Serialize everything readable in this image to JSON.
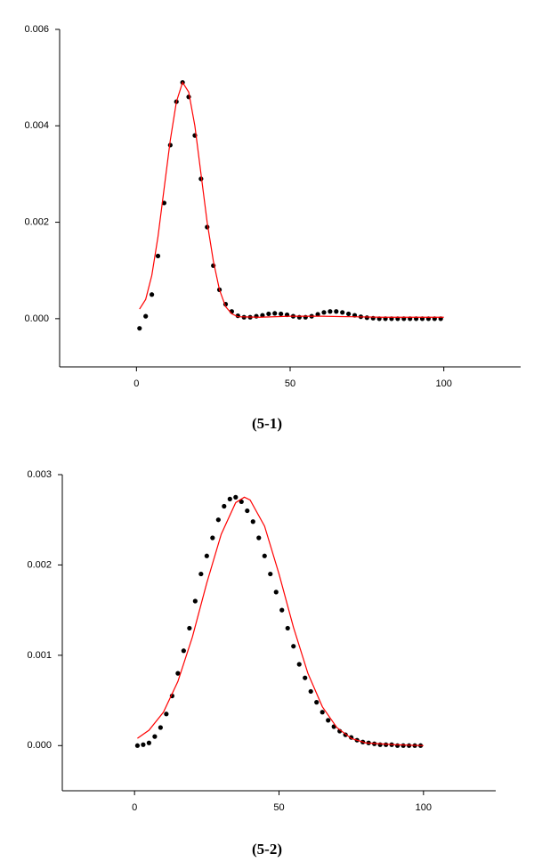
{
  "chart_data": [
    {
      "type": "scatter",
      "caption": "(5-1)",
      "xlim": [
        -25,
        125
      ],
      "xticks": [
        0,
        50,
        100
      ],
      "ylim": [
        -0.001,
        0.006
      ],
      "yticks": [
        {
          "value": 0,
          "label": "0.000"
        },
        0.002,
        0.004,
        0.006
      ],
      "series": [
        {
          "style": "markers",
          "color": "#000000",
          "x": [
            1,
            3,
            5,
            7,
            9,
            11,
            13,
            15,
            17,
            19,
            21,
            23,
            25,
            27,
            29,
            31,
            33,
            35,
            37,
            39,
            41,
            43,
            45,
            47,
            49,
            51,
            53,
            55,
            57,
            59,
            61,
            63,
            65,
            67,
            69,
            71,
            73,
            75,
            77,
            79,
            81,
            83,
            85,
            87,
            89,
            91,
            93,
            95,
            97,
            99
          ],
          "values": [
            -0.0002,
            5e-05,
            0.0005,
            0.0013,
            0.0024,
            0.0036,
            0.0045,
            0.0049,
            0.0046,
            0.0038,
            0.0029,
            0.0019,
            0.0011,
            0.0006,
            0.0003,
            0.00015,
            6e-05,
            3e-05,
            3e-05,
            5e-05,
            7e-05,
            0.0001,
            0.00011,
            0.0001,
            8e-05,
            5e-05,
            3e-05,
            3e-05,
            5e-05,
            9e-05,
            0.00013,
            0.00015,
            0.00015,
            0.00013,
            0.0001,
            7e-05,
            4e-05,
            2e-05,
            1e-05,
            0,
            0,
            0,
            0,
            0,
            0,
            0,
            0,
            0,
            0,
            0
          ]
        },
        {
          "style": "line",
          "color": "#ff0000",
          "x": [
            1,
            3,
            5,
            7,
            9,
            11,
            13,
            15,
            17,
            19,
            21,
            23,
            25,
            27,
            29,
            31,
            33,
            40,
            50,
            60,
            70,
            80,
            90,
            100
          ],
          "values": [
            0.0002,
            0.0004,
            0.0009,
            0.0017,
            0.0027,
            0.0037,
            0.0045,
            0.0049,
            0.0047,
            0.004,
            0.003,
            0.002,
            0.0012,
            0.0006,
            0.00025,
            0.0001,
            4e-05,
            3e-05,
            5e-05,
            5e-05,
            4e-05,
            3e-05,
            3e-05,
            3e-05
          ]
        }
      ]
    },
    {
      "type": "scatter",
      "caption": "(5-2)",
      "xlim": [
        -25,
        125
      ],
      "xticks": [
        0,
        50,
        100
      ],
      "ylim": [
        -0.0005,
        0.003
      ],
      "yticks": [
        {
          "value": 0,
          "label": "0.000"
        },
        0.001,
        0.002,
        0.003
      ],
      "series": [
        {
          "style": "markers",
          "color": "#000000",
          "x": [
            1,
            3,
            5,
            7,
            9,
            11,
            13,
            15,
            17,
            19,
            21,
            23,
            25,
            27,
            29,
            31,
            33,
            35,
            37,
            39,
            41,
            43,
            45,
            47,
            49,
            51,
            53,
            55,
            57,
            59,
            61,
            63,
            65,
            67,
            69,
            71,
            73,
            75,
            77,
            79,
            81,
            83,
            85,
            87,
            89,
            91,
            93,
            95,
            97,
            99
          ],
          "values": [
            0,
            1e-05,
            3e-05,
            0.0001,
            0.0002,
            0.00035,
            0.00055,
            0.0008,
            0.00105,
            0.0013,
            0.0016,
            0.0019,
            0.0021,
            0.0023,
            0.0025,
            0.00265,
            0.00273,
            0.00275,
            0.0027,
            0.0026,
            0.00248,
            0.0023,
            0.0021,
            0.0019,
            0.0017,
            0.0015,
            0.0013,
            0.0011,
            0.0009,
            0.00075,
            0.0006,
            0.00048,
            0.00037,
            0.00028,
            0.00021,
            0.00016,
            0.00012,
            9e-05,
            6e-05,
            4e-05,
            3e-05,
            2e-05,
            1e-05,
            1e-05,
            1e-05,
            0,
            0,
            0,
            0,
            0
          ]
        },
        {
          "style": "line",
          "color": "#ff0000",
          "x": [
            1,
            5,
            10,
            15,
            20,
            25,
            30,
            35,
            38,
            40,
            45,
            50,
            55,
            60,
            65,
            70,
            75,
            80,
            90,
            100
          ],
          "values": [
            8e-05,
            0.00017,
            0.00037,
            0.00071,
            0.0012,
            0.0018,
            0.00234,
            0.00269,
            0.00275,
            0.00272,
            0.00243,
            0.0019,
            0.00131,
            0.0008,
            0.00043,
            0.0002,
            8e-05,
            3e-05,
            1e-05,
            0
          ]
        }
      ]
    }
  ]
}
